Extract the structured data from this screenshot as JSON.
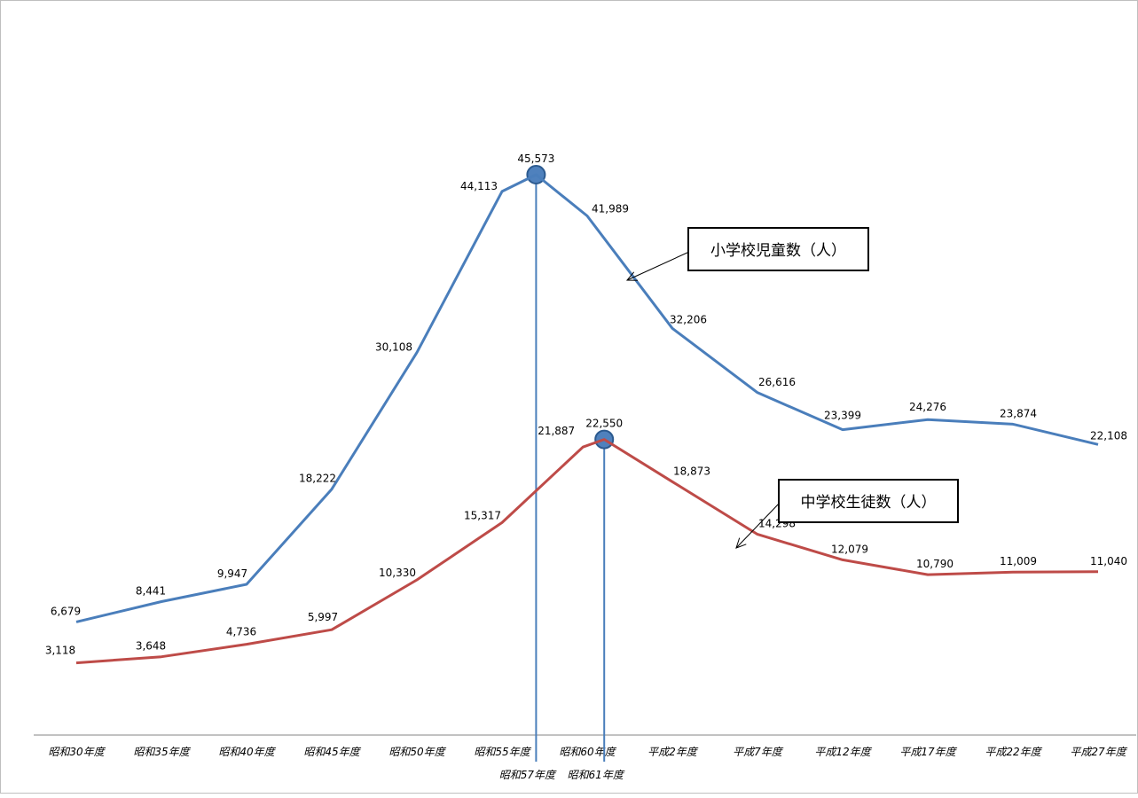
{
  "chart_data": {
    "type": "line",
    "title": "",
    "xlabel": "",
    "ylabel": "",
    "categories": [
      "昭和30年度",
      "昭和35年度",
      "昭和40年度",
      "昭和45年度",
      "昭和50年度",
      "昭和55年度",
      "昭和60年度",
      "平成2年度",
      "平成7年度",
      "平成12年度",
      "平成17年度",
      "平成22年度",
      "平成27年度"
    ],
    "series": [
      {
        "name": "小学校児童数（人）",
        "color": "#4a7ebb",
        "x": [
          0,
          1,
          2,
          3,
          4,
          5,
          5.4,
          6,
          7,
          8,
          9,
          10,
          11,
          12
        ],
        "values": [
          6679,
          8441,
          9947,
          18222,
          30108,
          44113,
          45573,
          41989,
          32206,
          26616,
          23399,
          24276,
          23874,
          22108
        ],
        "labels": [
          "6,679",
          "8,441",
          "9,947",
          "18,222",
          "30,108",
          "44,113",
          "45,573",
          "41,989",
          "32,206",
          "26,616",
          "23,399",
          "24,276",
          "23,874",
          "22,108"
        ]
      },
      {
        "name": "中学校生徒数（人）",
        "color": "#be4b48",
        "x": [
          0,
          1,
          2,
          3,
          4,
          5,
          5.95,
          6.2,
          7,
          8,
          9,
          10,
          11,
          12
        ],
        "values": [
          3118,
          3648,
          4736,
          5997,
          10330,
          15317,
          21887,
          22550,
          18873,
          14298,
          12079,
          10790,
          11009,
          11040
        ],
        "labels": [
          "3,118",
          "3,648",
          "4,736",
          "5,997",
          "10,330",
          "15,317",
          "21,887",
          "22,550",
          "18,873",
          "14,298",
          "12,079",
          "10,790",
          "11,009",
          "11,040"
        ]
      }
    ],
    "peaks": [
      {
        "series": 0,
        "x": 5.4,
        "value": 45573,
        "label": "昭和57年度"
      },
      {
        "series": 1,
        "x": 6.2,
        "value": 22550,
        "label": "昭和61年度"
      }
    ],
    "callouts": [
      {
        "text": "小学校児童数（人）",
        "series": 0
      },
      {
        "text": "中学校生徒数（人）",
        "series": 1
      }
    ],
    "ylim": [
      0,
      55000
    ],
    "grid": false,
    "legend": "none"
  }
}
